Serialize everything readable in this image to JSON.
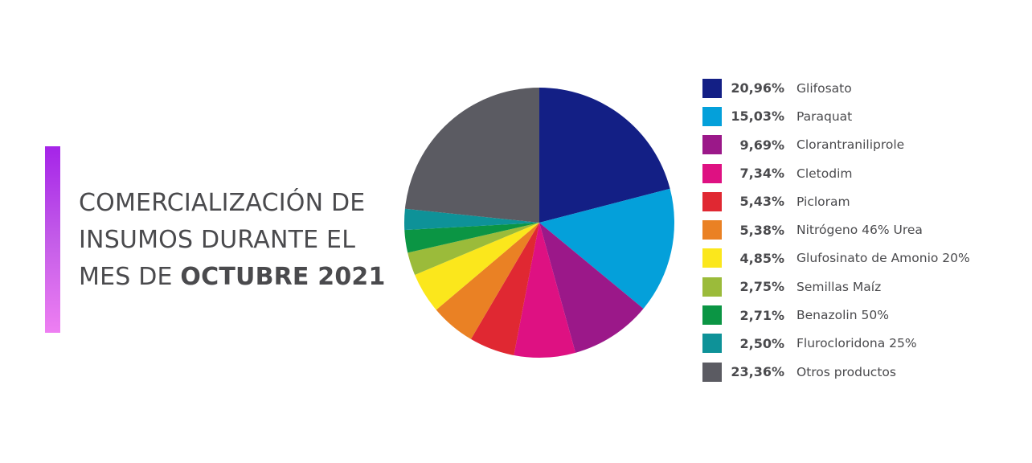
{
  "title": {
    "line1": "COMERCIALIZACIÓN DE",
    "line2": "INSUMOS DURANTE EL",
    "line3_prefix": "MES DE ",
    "line3_bold": "OCTUBRE 2021"
  },
  "accent_gradient": [
    "#a524e8",
    "#ee7ff2"
  ],
  "chart_data": {
    "type": "pie",
    "title": "COMERCIALIZACIÓN DE INSUMOS DURANTE EL MES DE OCTUBRE 2021",
    "legend_position": "right",
    "start_angle": "top, clockwise",
    "slices": [
      {
        "label": "Glifosato",
        "value": 20.96,
        "display": "20,96%",
        "color": "#131f85"
      },
      {
        "label": "Paraquat",
        "value": 15.03,
        "display": "15,03%",
        "color": "#04a0da"
      },
      {
        "label": "Clorantraniliprole",
        "value": 9.69,
        "display": "9,69%",
        "color": "#9b1889"
      },
      {
        "label": "Cletodim",
        "value": 7.34,
        "display": "7,34%",
        "color": "#de1182"
      },
      {
        "label": "Picloram",
        "value": 5.43,
        "display": "5,43%",
        "color": "#e02832"
      },
      {
        "label": "Nitrógeno 46% Urea",
        "value": 5.38,
        "display": "5,38%",
        "color": "#ea8124"
      },
      {
        "label": "Glufosinato de Amonio 20%",
        "value": 4.85,
        "display": "4,85%",
        "color": "#fbe71c"
      },
      {
        "label": "Semillas Maíz",
        "value": 2.75,
        "display": "2,75%",
        "color": "#9bbb3a"
      },
      {
        "label": "Benazolin 50%",
        "value": 2.71,
        "display": "2,71%",
        "color": "#0b9544"
      },
      {
        "label": "Flurocloridona 25%",
        "value": 2.5,
        "display": "2,50%",
        "color": "#0e9298"
      },
      {
        "label": "Otros productos",
        "value": 23.36,
        "display": "23,36%",
        "color": "#5b5b62"
      }
    ]
  }
}
